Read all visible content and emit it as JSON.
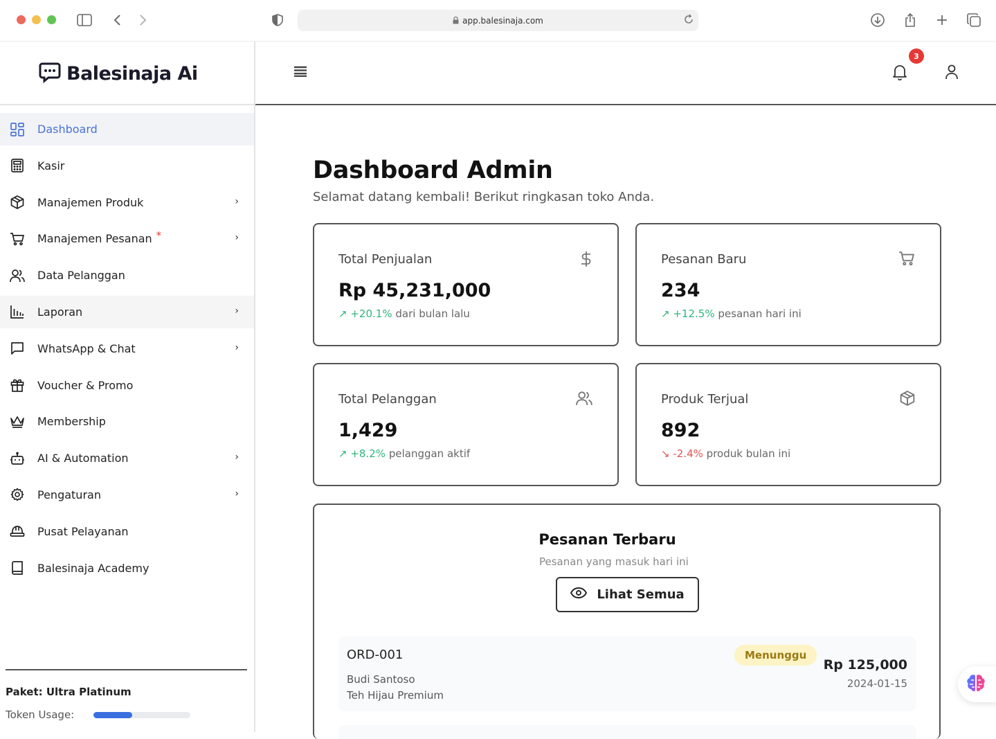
{
  "browser": {
    "url": "app.balesinaja.com"
  },
  "brand": {
    "name": "Balesinaja Ai"
  },
  "sidebar": {
    "items": [
      {
        "label": "Dashboard",
        "icon": "dashboard-grid-icon",
        "active": true
      },
      {
        "label": "Kasir",
        "icon": "calculator-icon"
      },
      {
        "label": "Manajemen Produk",
        "icon": "package-icon",
        "chevron": true
      },
      {
        "label": "Manajemen Pesanan",
        "icon": "cart-icon",
        "chevron": true,
        "marker": "*"
      },
      {
        "label": "Data Pelanggan",
        "icon": "users-icon"
      },
      {
        "label": "Laporan",
        "icon": "bar-chart-icon",
        "chevron": true
      },
      {
        "label": "WhatsApp & Chat",
        "icon": "chat-icon",
        "chevron": true
      },
      {
        "label": "Voucher & Promo",
        "icon": "gift-icon"
      },
      {
        "label": "Membership",
        "icon": "crown-icon"
      },
      {
        "label": "AI & Automation",
        "icon": "bot-icon",
        "chevron": true
      },
      {
        "label": "Pengaturan",
        "icon": "gear-icon",
        "chevron": true
      },
      {
        "label": "Pusat Pelayanan",
        "icon": "helmet-icon"
      },
      {
        "label": "Balesinaja Academy",
        "icon": "book-icon"
      }
    ],
    "plan_label": "Paket: Ultra Platinum",
    "token_label": "Token Usage:",
    "token_usage_fraction": 0.4
  },
  "header": {
    "notification_count": "3"
  },
  "page": {
    "title": "Dashboard Admin",
    "subtitle": "Selamat datang kembali! Berikut ringkasan toko Anda."
  },
  "stats": [
    {
      "label": "Total Penjualan",
      "value": "Rp 45,231,000",
      "change": "+20.1%",
      "change_text": "dari bulan lalu",
      "trend": "up",
      "icon": "dollar-icon"
    },
    {
      "label": "Pesanan Baru",
      "value": "234",
      "change": "+12.5%",
      "change_text": "pesanan hari ini",
      "trend": "up",
      "icon": "cart-icon"
    },
    {
      "label": "Total Pelanggan",
      "value": "1,429",
      "change": "+8.2%",
      "change_text": "pelanggan aktif",
      "trend": "up",
      "icon": "users-icon"
    },
    {
      "label": "Produk Terjual",
      "value": "892",
      "change": "-2.4%",
      "change_text": "produk bulan ini",
      "trend": "down",
      "icon": "package-icon"
    }
  ],
  "orders": {
    "title": "Pesanan Terbaru",
    "subtitle": "Pesanan yang masuk hari ini",
    "view_all_label": "Lihat Semua",
    "rows": [
      {
        "id": "ORD-001",
        "customer": "Budi Santoso",
        "product": "Teh Hijau Premium",
        "status": "Menunggu",
        "amount": "Rp 125,000",
        "date": "2024-01-15"
      }
    ]
  },
  "colors": {
    "accent": "#4a73d6",
    "positive": "#2fb57a",
    "negative": "#e55353",
    "badge": "#e53935",
    "status_pending_bg": "#fdf3c4"
  }
}
